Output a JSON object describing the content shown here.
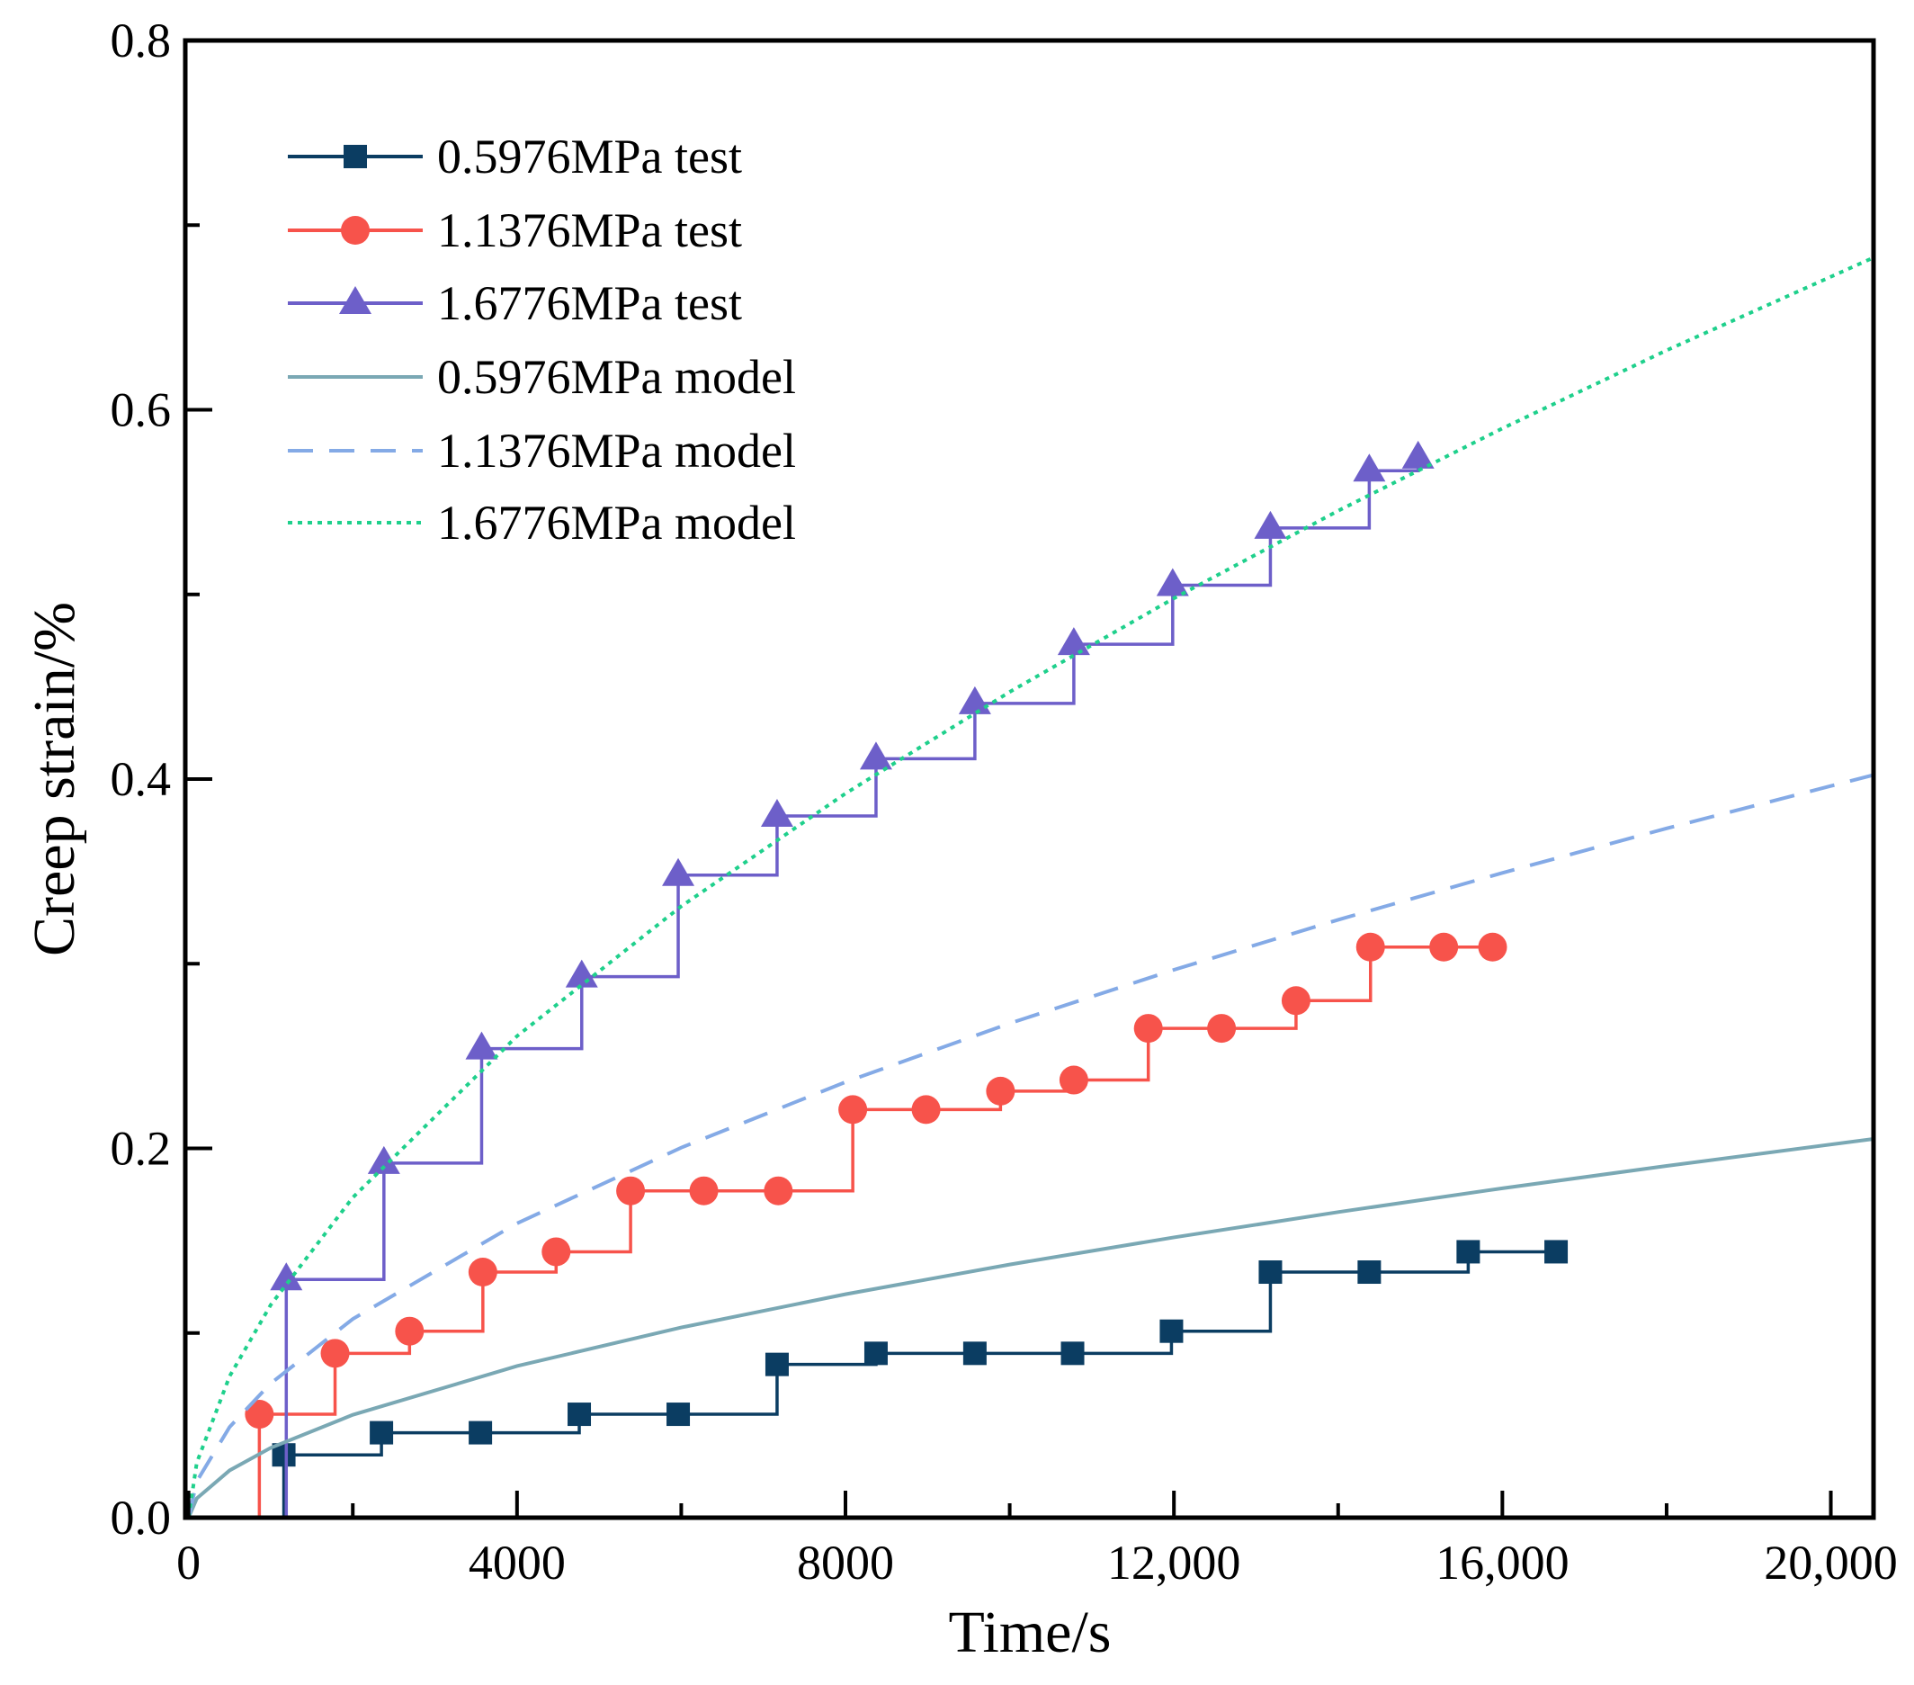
{
  "chart_data": {
    "type": "line",
    "title": "",
    "xlabel": "Time/s",
    "ylabel": "Creep strain/%",
    "xlim": [
      -40,
      20520
    ],
    "ylim": [
      0,
      0.8
    ],
    "grid": false,
    "legend_placement": "top-left",
    "x_ticks": [
      0,
      4000,
      8000,
      12000,
      16000,
      20000
    ],
    "x_tick_labels": [
      "0",
      "4000",
      "8000",
      "12,000",
      "16,000",
      "20,000"
    ],
    "y_ticks": [
      0,
      0.2,
      0.4,
      0.6,
      0.8
    ],
    "y_tick_labels": [
      "0.0",
      "0.2",
      "0.4",
      "0.6",
      "0.8"
    ],
    "series": [
      {
        "name": "0.5976MPa test",
        "kind": "test",
        "marker": "square",
        "color": "#0b3d62",
        "x": [
          1160,
          2349,
          3554,
          4758,
          5963,
          7167,
          8372,
          9576,
          10766,
          11970,
          13175,
          14379,
          15584,
          16654
        ],
        "y": [
          0.034,
          0.046,
          0.046,
          0.056,
          0.056,
          0.083,
          0.089,
          0.089,
          0.089,
          0.101,
          0.133,
          0.133,
          0.144,
          0.144
        ]
      },
      {
        "name": "1.1376MPa test",
        "kind": "test",
        "marker": "circle",
        "color": "#f7534b",
        "x": [
          862,
          1784,
          2691,
          3584,
          4476,
          5383,
          6275,
          7182,
          8089,
          8981,
          9888,
          10781,
          11688,
          12580,
          13487,
          14394,
          15286,
          15881
        ],
        "y": [
          0.056,
          0.089,
          0.101,
          0.133,
          0.144,
          0.177,
          0.177,
          0.177,
          0.221,
          0.221,
          0.231,
          0.237,
          0.265,
          0.265,
          0.28,
          0.309,
          0.309,
          0.309
        ]
      },
      {
        "name": "1.6776MPa test",
        "kind": "test",
        "marker": "triangle",
        "color": "#6d5fc9",
        "x": [
          1190,
          2379,
          3569,
          4788,
          5963,
          7167,
          8372,
          9576,
          10781,
          11985,
          13175,
          14379,
          14974
        ],
        "y": [
          0.129,
          0.192,
          0.254,
          0.293,
          0.348,
          0.38,
          0.411,
          0.441,
          0.473,
          0.505,
          0.536,
          0.567,
          0.574
        ]
      },
      {
        "name": "0.5976MPa model",
        "kind": "model",
        "dash": "solid",
        "color": "#7aa8b4",
        "x": [
          0,
          100,
          500,
          1000,
          2000,
          4000,
          6000,
          8000,
          10000,
          12000,
          14000,
          16000,
          18000,
          20500
        ],
        "y": [
          0,
          0.0104,
          0.0256,
          0.0378,
          0.0557,
          0.0821,
          0.103,
          0.121,
          0.1371,
          0.1518,
          0.1655,
          0.1784,
          0.1905,
          0.205
        ]
      },
      {
        "name": "1.1376MPa model",
        "kind": "model",
        "dash": "dashed",
        "color": "#84aae6",
        "x": [
          0,
          100,
          500,
          1000,
          2000,
          4000,
          6000,
          8000,
          10000,
          12000,
          14000,
          16000,
          18000,
          20500
        ],
        "y": [
          0,
          0.0197,
          0.0491,
          0.0727,
          0.1076,
          0.1594,
          0.2004,
          0.2359,
          0.2677,
          0.2967,
          0.3238,
          0.3492,
          0.3733,
          0.402
        ]
      },
      {
        "name": "1.6776MPa model",
        "kind": "model",
        "dash": "dotted",
        "color": "#1fd08c",
        "x": [
          0,
          100,
          500,
          1000,
          2000,
          4000,
          6000,
          8000,
          10000,
          12000,
          14000,
          16000,
          18000,
          20500
        ],
        "y": [
          0,
          0.0298,
          0.0766,
          0.1152,
          0.1734,
          0.2608,
          0.3311,
          0.3922,
          0.4472,
          0.4979,
          0.5453,
          0.5899,
          0.6322,
          0.682
        ]
      }
    ]
  }
}
